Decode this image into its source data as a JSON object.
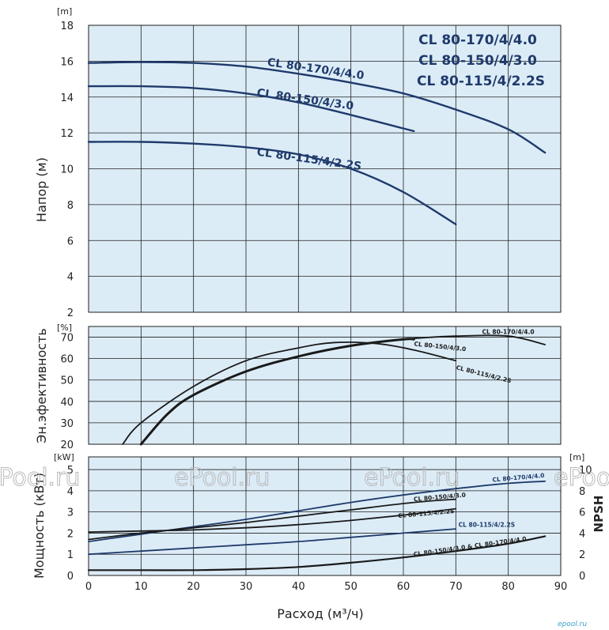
{
  "colors": {
    "background": "#dcecf7",
    "grid": "#1f1f1f",
    "pump_curve": "#1f3a6b",
    "black_curve": "#1a1a1a"
  },
  "watermark": "ePool.ru",
  "logo_text": "epool.ru",
  "xaxis": {
    "label": "Расход (м³/ч)",
    "ticks": [
      0,
      10,
      20,
      30,
      40,
      50,
      60,
      70,
      80,
      90
    ],
    "lim": [
      0,
      90
    ]
  },
  "chart_data": [
    {
      "type": "line",
      "panel": "head",
      "unit": "[m]",
      "ylabel": "Напор (м)",
      "ylim": [
        2,
        18
      ],
      "yticks": [
        2,
        4,
        6,
        8,
        10,
        12,
        14,
        16,
        18
      ],
      "grid": true,
      "legend": [
        "CL 80-170/4/4.0",
        "CL 80-150/4/3.0",
        "CL 80-115/4/2.2S"
      ],
      "series": [
        {
          "name": "CL 80-170/4/4.0",
          "x": [
            0,
            10,
            20,
            30,
            40,
            50,
            60,
            70,
            80,
            87
          ],
          "y": [
            15.9,
            15.95,
            15.9,
            15.7,
            15.3,
            14.8,
            14.2,
            13.3,
            12.2,
            10.9
          ]
        },
        {
          "name": "CL 80-150/4/3.0",
          "x": [
            0,
            10,
            20,
            30,
            40,
            50,
            62
          ],
          "y": [
            14.6,
            14.6,
            14.5,
            14.2,
            13.7,
            13.0,
            12.1
          ]
        },
        {
          "name": "CL 80-115/4/2.2S",
          "x": [
            0,
            10,
            20,
            30,
            40,
            50,
            60,
            70
          ],
          "y": [
            11.5,
            11.5,
            11.4,
            11.2,
            10.8,
            10.0,
            8.7,
            6.9
          ]
        }
      ]
    },
    {
      "type": "line",
      "panel": "efficiency",
      "unit": "[%]",
      "ylabel": "Эн.эфективность",
      "ylim": [
        20,
        75
      ],
      "yticks": [
        20,
        30,
        40,
        50,
        60,
        70
      ],
      "grid": true,
      "series": [
        {
          "name": "CL 80-170/4/4.0",
          "x": [
            10,
            15,
            20,
            30,
            40,
            50,
            60,
            70,
            80,
            87
          ],
          "y": [
            20,
            34,
            43,
            54,
            61,
            66,
            69,
            70.5,
            70.5,
            66.5
          ]
        },
        {
          "name": "CL 80-150/4/3.0",
          "x": [
            10,
            15,
            20,
            30,
            40,
            50,
            60,
            62
          ],
          "y": [
            20,
            34,
            43,
            54,
            61,
            66,
            69,
            69
          ]
        },
        {
          "name": "CL 80-115/4/2.2S",
          "x": [
            6.5,
            10,
            20,
            30,
            40,
            47,
            55,
            62,
            70
          ],
          "y": [
            20,
            30,
            47,
            59,
            65,
            67.5,
            67,
            64,
            59
          ]
        }
      ]
    },
    {
      "type": "line",
      "panel": "power_npsh",
      "unit_left": "[kW]",
      "ylabel": "Мощность (кВт)",
      "ylim": [
        0,
        5.6
      ],
      "yticks": [
        0,
        1,
        2,
        3,
        4,
        5
      ],
      "unit_right": "[m]",
      "ylabel_right": "NPSH",
      "ylim_right": [
        0,
        11.2
      ],
      "yticks_right": [
        0,
        2,
        4,
        6,
        8,
        10
      ],
      "grid": true,
      "series": [
        {
          "name": "CL 80-170/4/4.0",
          "x": [
            0,
            10,
            20,
            30,
            40,
            50,
            60,
            70,
            80,
            87
          ],
          "y": [
            1.6,
            1.95,
            2.3,
            2.65,
            3.05,
            3.45,
            3.8,
            4.1,
            4.35,
            4.45
          ]
        },
        {
          "name": "CL 80-150/4/3.0",
          "x": [
            0,
            10,
            20,
            30,
            40,
            50,
            62,
            70
          ],
          "y": [
            1.7,
            2.0,
            2.25,
            2.5,
            2.8,
            3.1,
            3.45,
            3.6
          ]
        },
        {
          "name": "CL 80-115/4/2.2S",
          "x": [
            0,
            10,
            20,
            30,
            40,
            50,
            60,
            70
          ],
          "y": [
            2.05,
            2.1,
            2.15,
            2.25,
            2.4,
            2.6,
            2.85,
            3.15
          ]
        },
        {
          "name": "CL 80-115/4/2.2S",
          "x": [
            0,
            10,
            20,
            30,
            40,
            50,
            60,
            70
          ],
          "y": [
            1.0,
            1.15,
            1.3,
            1.45,
            1.6,
            1.8,
            2.0,
            2.2
          ]
        },
        {
          "name": "CL 80-150/4/3.0 & CL 80-170/4/4.0",
          "axis": "right",
          "x": [
            0,
            10,
            20,
            30,
            40,
            50,
            60,
            70,
            80,
            87
          ],
          "y": [
            0.5,
            0.5,
            0.5,
            0.6,
            0.8,
            1.2,
            1.7,
            2.3,
            3.0,
            3.7
          ]
        }
      ],
      "curve_labels": [
        "CL 80-170/4/4.0",
        "CL 80-150/4/3.0",
        "CL 80-115/4/2.2S",
        "CL 80-115/4/2.2S",
        "CL 80-150/4/3.0 & CL 80-170/4/4.0"
      ]
    }
  ]
}
